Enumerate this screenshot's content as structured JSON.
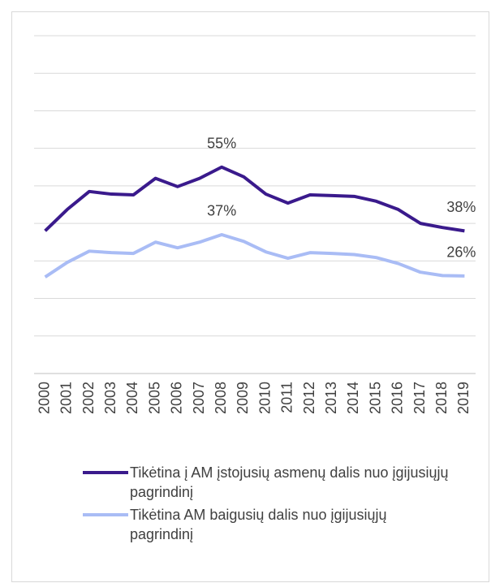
{
  "chart_data": {
    "type": "line",
    "categories": [
      "2000",
      "2001",
      "2002",
      "2003",
      "2004",
      "2005",
      "2006",
      "2007",
      "2008",
      "2009",
      "2010",
      "2011",
      "2012",
      "2013",
      "2014",
      "2015",
      "2016",
      "2017",
      "2018",
      "2019"
    ],
    "series": [
      {
        "name": "Tikėtina į AM įstojusių asmenų dalis nuo įgijusiųjų pagrindinį",
        "color": "#3a1a8c",
        "values": [
          38,
          43.7,
          48.5,
          47.8,
          47.6,
          52,
          49.8,
          52,
          55,
          52.4,
          47.8,
          45.4,
          47.6,
          47.4,
          47.2,
          45.9,
          43.7,
          40,
          38.9,
          38
        ],
        "value_labels": [
          null,
          null,
          null,
          null,
          null,
          null,
          null,
          null,
          "55%",
          null,
          null,
          null,
          null,
          null,
          null,
          null,
          null,
          null,
          null,
          "38%"
        ]
      },
      {
        "name": "Tikėtina AM baigusių dalis nuo įgijusiųjų pagrindinį",
        "color": "#a9bcf5",
        "values": [
          25.7,
          29.6,
          32.6,
          32.2,
          32,
          35,
          33.5,
          35,
          37,
          35.2,
          32.4,
          30.7,
          32.2,
          32,
          31.7,
          30.9,
          29.3,
          27,
          26.1,
          26
        ],
        "value_labels": [
          null,
          null,
          null,
          null,
          null,
          null,
          null,
          null,
          "37%",
          null,
          null,
          null,
          null,
          null,
          null,
          null,
          null,
          null,
          null,
          "26%"
        ]
      }
    ],
    "ylim": [
      0,
      90
    ],
    "yticks": [
      0,
      10,
      20,
      30,
      40,
      50,
      60,
      70,
      80,
      90
    ],
    "grid": true,
    "legend": "bottom"
  }
}
